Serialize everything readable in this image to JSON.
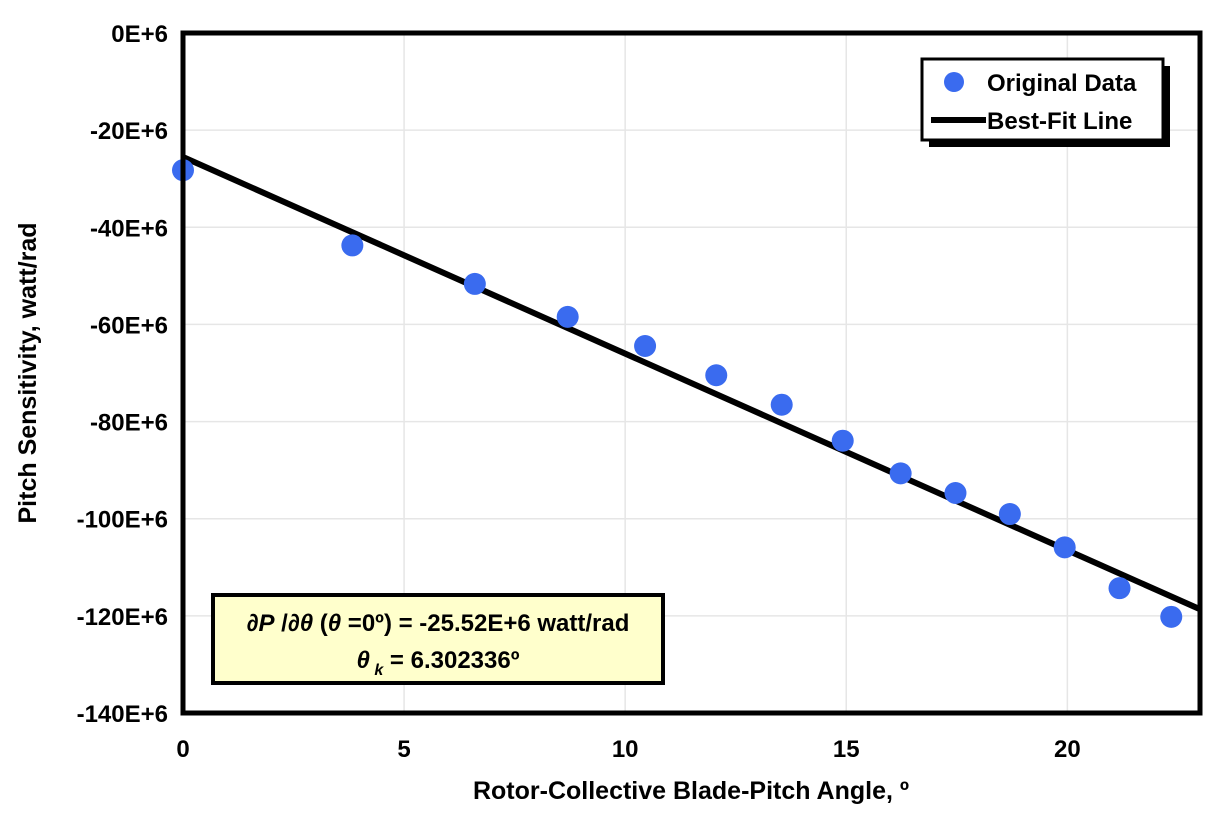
{
  "chart_data": {
    "type": "scatter",
    "xlabel": "Rotor-Collective Blade-Pitch Angle, º",
    "ylabel": "Pitch Sensitivity, watt/rad",
    "xlim": [
      0,
      23
    ],
    "ylim": [
      -140,
      0
    ],
    "y_units": "E+6 watt/rad",
    "grid": true,
    "grid_color": "#E6E6E6",
    "x_ticks": [
      "0",
      "5",
      "10",
      "15",
      "20"
    ],
    "x_tick_values": [
      0,
      5,
      10,
      15,
      20
    ],
    "y_ticks": [
      "0E+6",
      "-20E+6",
      "-40E+6",
      "-60E+6",
      "-80E+6",
      "-100E+6",
      "-120E+6",
      "-140E+6"
    ],
    "y_tick_values": [
      0,
      -20,
      -40,
      -60,
      -80,
      -100,
      -120,
      -140
    ],
    "legend": {
      "position": "top-right"
    },
    "series": [
      {
        "name": "Original Data",
        "type": "scatter",
        "marker_color": "#3A6BEF",
        "x": [
          0.0,
          3.83,
          6.6,
          8.7,
          10.45,
          12.06,
          13.54,
          14.92,
          16.23,
          17.47,
          18.7,
          19.94,
          21.18,
          22.35
        ],
        "y": [
          -28.24,
          -43.73,
          -51.66,
          -58.44,
          -64.44,
          -70.46,
          -76.53,
          -83.94,
          -90.67,
          -94.71,
          -99.04,
          -105.9,
          -114.3,
          -120.2
        ]
      },
      {
        "name": "Best-Fit Line",
        "type": "line",
        "color": "#000000",
        "x": [
          0,
          23
        ],
        "y": [
          -25.52,
          -118.65
        ]
      }
    ],
    "annotation": {
      "fill": "#FFFFCC",
      "border_color": "#000000",
      "line1_parts": [
        {
          "text": "∂P",
          "style": "italic"
        },
        {
          "text": " /",
          "style": "plain"
        },
        {
          "text": "∂θ",
          "style": "italic"
        },
        {
          "text": " (",
          "style": "plain"
        },
        {
          "text": "θ",
          "style": "italic"
        },
        {
          "text": " =0º) = -25.52E+6 watt/rad",
          "style": "plain"
        }
      ],
      "line2_parts": [
        {
          "text": "θ",
          "style": "italic"
        },
        {
          "text": " k",
          "style": "subscript"
        },
        {
          "text": " = 6.302336º",
          "style": "plain"
        }
      ]
    }
  }
}
